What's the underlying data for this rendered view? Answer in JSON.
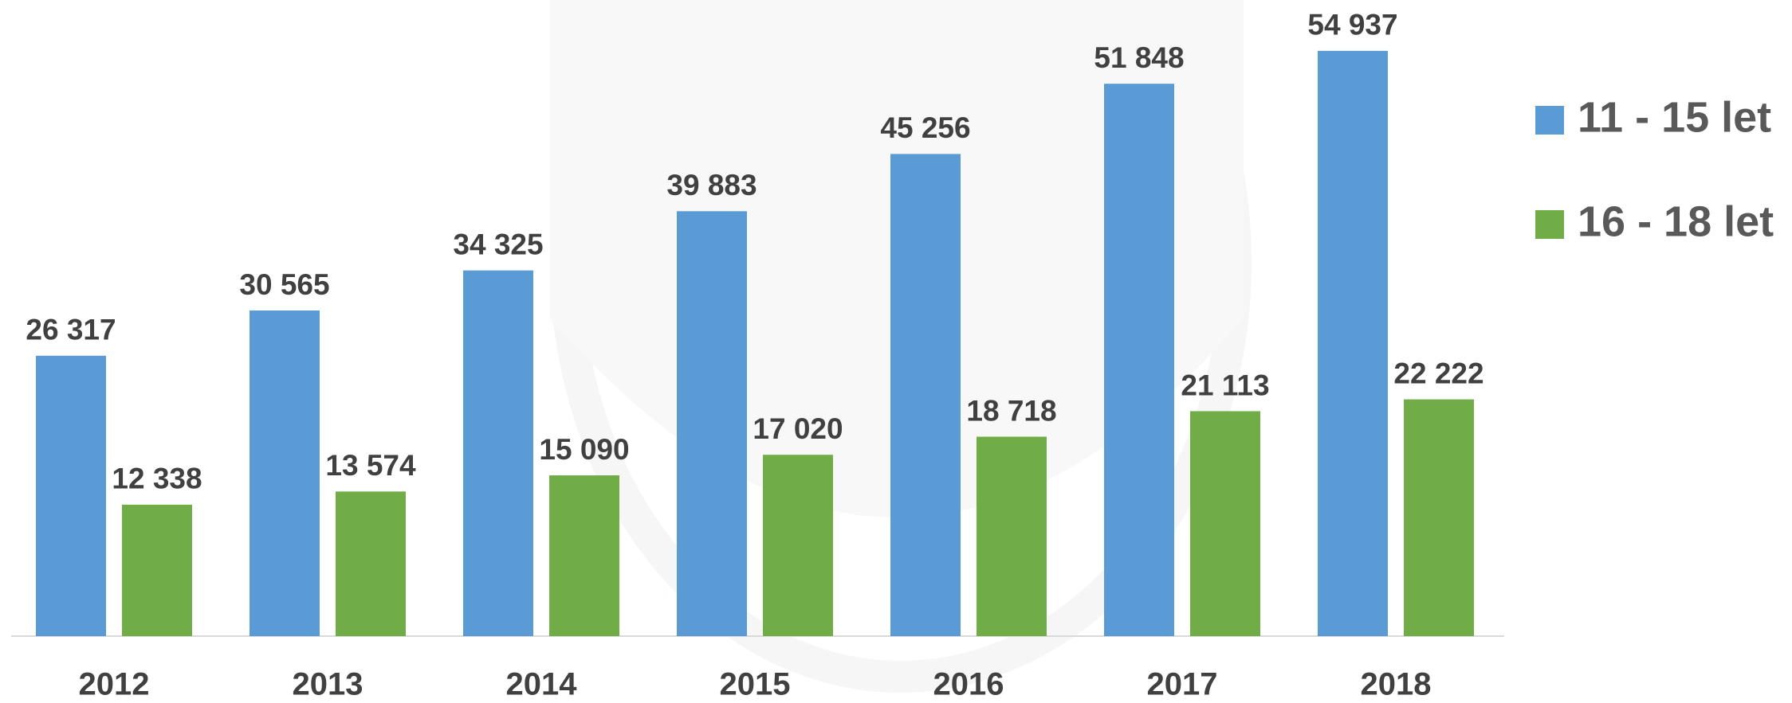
{
  "chart_data": {
    "type": "bar",
    "categories": [
      "2012",
      "2013",
      "2014",
      "2015",
      "2016",
      "2017",
      "2018"
    ],
    "series": [
      {
        "name": "11 - 15 let",
        "color": "#5b9bd5",
        "values": [
          26317,
          30565,
          34325,
          39883,
          45256,
          51848,
          54937
        ],
        "value_labels": [
          "26 317",
          "30 565",
          "34 325",
          "39 883",
          "45 256",
          "51 848",
          "54 937"
        ]
      },
      {
        "name": "16 - 18 let",
        "color": "#70ad47",
        "values": [
          12338,
          13574,
          15090,
          17020,
          18718,
          21113,
          22222
        ],
        "value_labels": [
          "12 338",
          "13 574",
          "15 090",
          "17 020",
          "18 718",
          "21 113",
          "22 222"
        ]
      }
    ],
    "ylim": [
      0,
      55000
    ],
    "legend": "right"
  }
}
